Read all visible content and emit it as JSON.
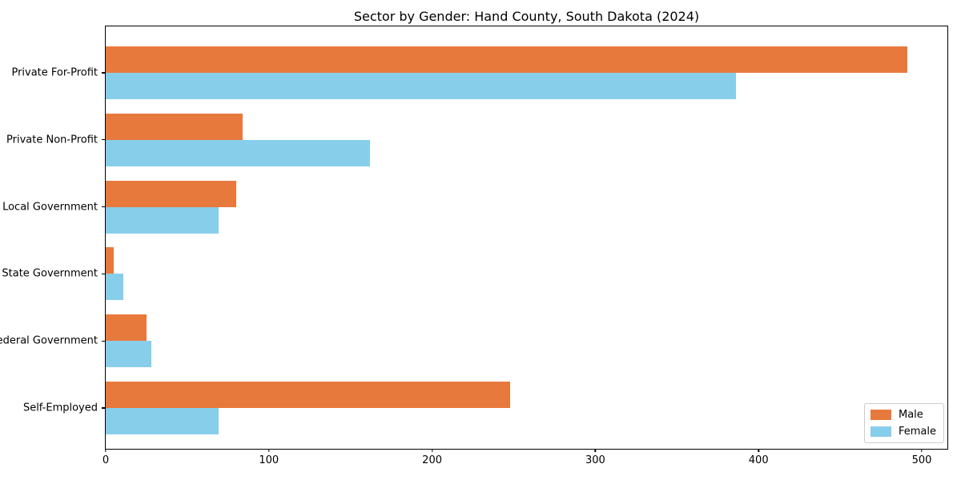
{
  "chart_data": {
    "type": "bar",
    "orientation": "horizontal",
    "title": "Sector by Gender: Hand County, South Dakota (2024)",
    "categories": [
      "Private For-Profit",
      "Private Non-Profit",
      "Local Government",
      "State Government",
      "Federal Government",
      "Self-Employed"
    ],
    "series": [
      {
        "name": "Male",
        "color": "#e8793d",
        "values": [
          491,
          84,
          80,
          5,
          25,
          248
        ]
      },
      {
        "name": "Female",
        "color": "#87ceeb",
        "values": [
          386,
          162,
          69,
          11,
          28,
          69
        ]
      }
    ],
    "xlabel": "",
    "ylabel": "",
    "x_ticks": [
      0,
      100,
      200,
      300,
      400,
      500
    ],
    "xlim": [
      0,
      515.7
    ],
    "grid": false,
    "legend": {
      "position": "lower right",
      "entries": [
        "Male",
        "Female"
      ]
    },
    "colors": {
      "axis": "#000000",
      "background": "#ffffff",
      "legend_border": "#cccccc"
    }
  }
}
